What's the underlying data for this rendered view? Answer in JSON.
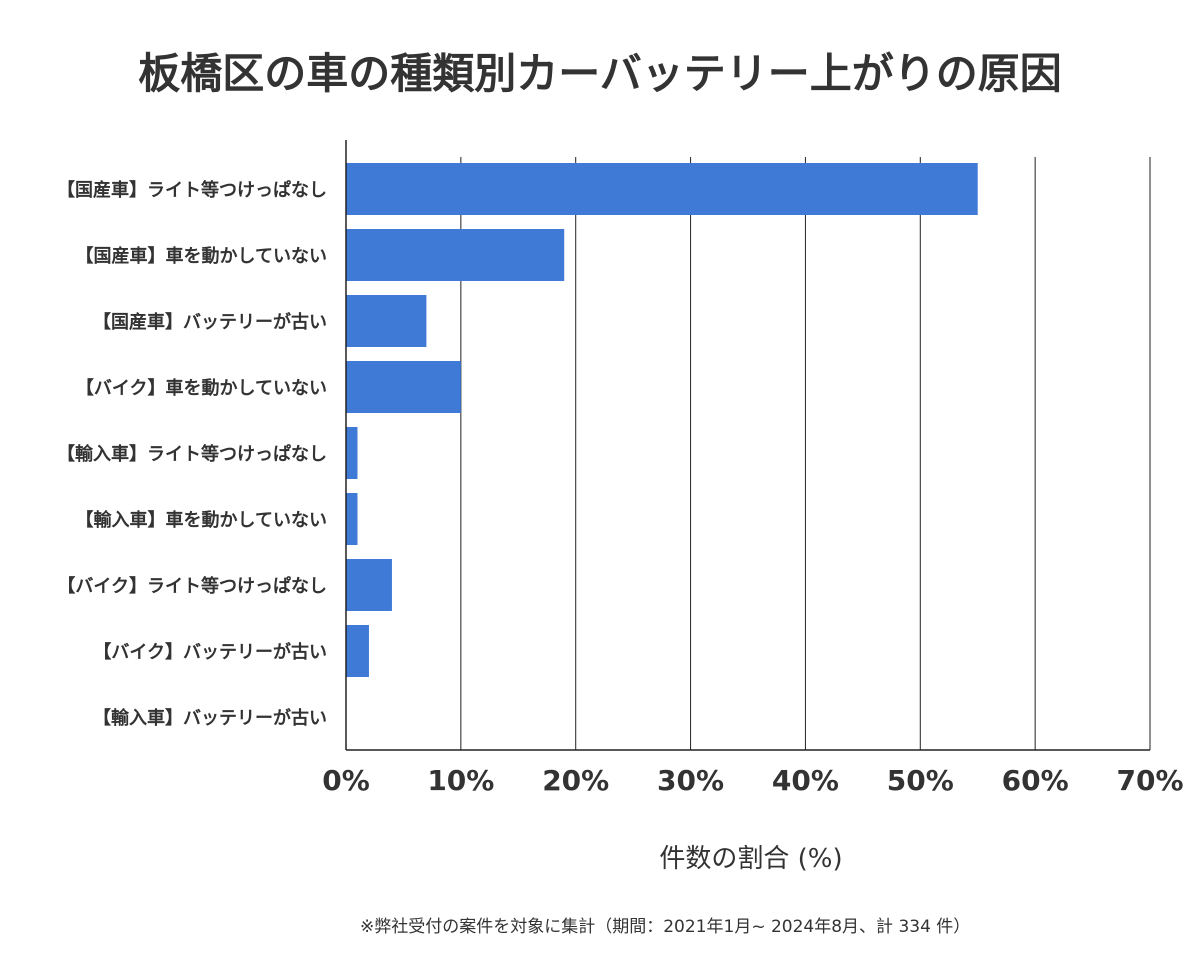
{
  "chart_data": {
    "type": "bar",
    "orientation": "horizontal",
    "title": "板橋区の車の種類別カーバッテリー上がりの原因",
    "xlabel": "件数の割合 (%)",
    "ylabel": "",
    "categories": [
      "【国産車】ライト等つけっぱなし",
      "【国産車】車を動かしていない",
      "【国産車】バッテリーが古い",
      "【バイク】車を動かしていない",
      "【輸入車】ライト等つけっぱなし",
      "【輸入車】車を動かしていない",
      "【バイク】ライト等つけっぱなし",
      "【バイク】バッテリーが古い",
      "【輸入車】バッテリーが古い"
    ],
    "values": [
      55,
      19,
      7,
      10,
      1,
      1,
      4,
      2,
      0
    ],
    "xlim": [
      0,
      70
    ],
    "xticks": [
      "0%",
      "10%",
      "20%",
      "30%",
      "40%",
      "50%",
      "60%",
      "70%"
    ],
    "grid": true,
    "bar_color": "#3f7ad6",
    "note": "※弊社受付の案件を対象に集計（期間：2021年1月~ 2024年8月、計 334 件）"
  }
}
